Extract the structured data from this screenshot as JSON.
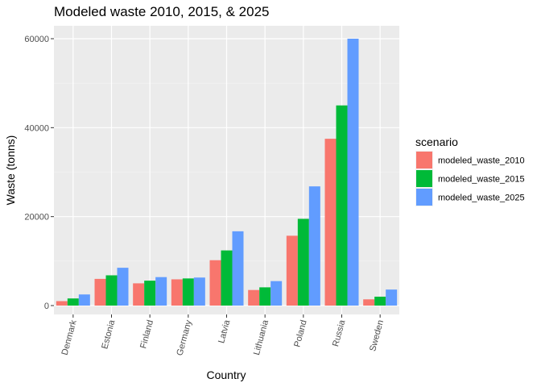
{
  "chart_data": {
    "type": "bar",
    "title": "Modeled waste 2010, 2015, & 2025",
    "xlabel": "Country",
    "ylabel": "Waste (tonns)",
    "categories": [
      "Denmark",
      "Estonia",
      "Finland",
      "Germany",
      "Latvia",
      "Lithuania",
      "Poland",
      "Russia",
      "Sweden"
    ],
    "series": [
      {
        "name": "modeled_waste_2010",
        "color": "#F8766D",
        "values": [
          1000,
          6000,
          5000,
          5900,
          10200,
          3500,
          15700,
          37500,
          1400
        ]
      },
      {
        "name": "modeled_waste_2015",
        "color": "#00BA38",
        "values": [
          1600,
          6800,
          5600,
          6100,
          12400,
          4100,
          19500,
          45000,
          2000
        ]
      },
      {
        "name": "modeled_waste_2025",
        "color": "#619CFF",
        "values": [
          2500,
          8500,
          6400,
          6300,
          16700,
          5500,
          26800,
          60000,
          3600
        ]
      }
    ],
    "ylim": [
      0,
      62000
    ],
    "yticks": [
      0,
      20000,
      40000,
      60000
    ],
    "ytick_labels": [
      "0",
      "20000",
      "40000",
      "60000"
    ],
    "grid": true,
    "legend": {
      "title": "scenario",
      "position": "right"
    }
  }
}
